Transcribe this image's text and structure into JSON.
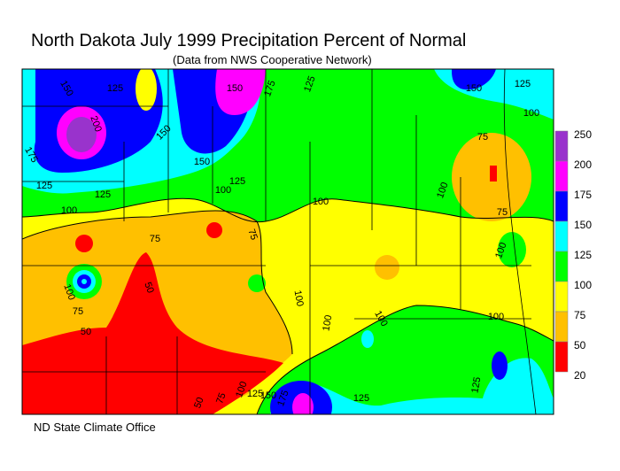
{
  "header": {
    "title": "North Dakota July 1999 Precipitation Percent of Normal",
    "subtitle": "(Data from NWS Cooperative Network)"
  },
  "legend": {
    "labels": [
      "250",
      "200",
      "175",
      "150",
      "125",
      "100",
      "75",
      "50",
      "20"
    ],
    "colors": [
      "#9933cc",
      "#ff00ff",
      "#0000ff",
      "#00ffff",
      "#00ff00",
      "#ffff00",
      "#ffc000",
      "#ff0000"
    ]
  },
  "contour_labels": [
    "150",
    "125",
    "150",
    "175",
    "125",
    "150",
    "125",
    "100",
    "200",
    "150",
    "175",
    "150",
    "125",
    "125",
    "100",
    "125",
    "100",
    "75",
    "100",
    "100",
    "75",
    "75",
    "75",
    "100",
    "50",
    "100",
    "75",
    "100",
    "50",
    "100",
    "100",
    "100",
    "50",
    "75",
    "100",
    "125",
    "150",
    "175",
    "125",
    "125"
  ],
  "footer": "ND State Climate Office"
}
